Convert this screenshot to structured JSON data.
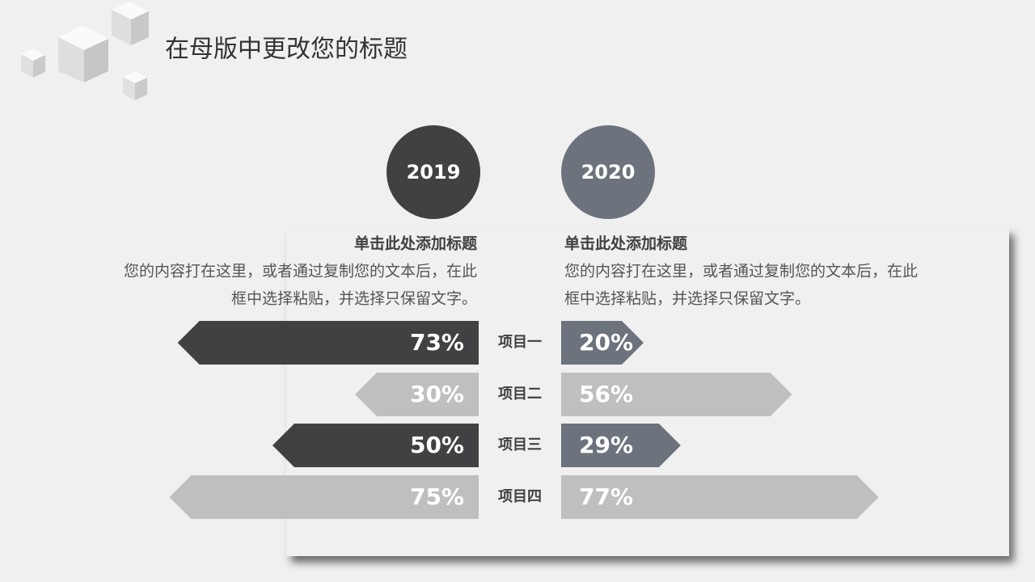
{
  "chart_data": {
    "type": "bar",
    "title": "在母版中更改您的标题",
    "categories": [
      "项目一",
      "项目二",
      "项目三",
      "项目四"
    ],
    "xlim": [
      0,
      100
    ],
    "series": [
      {
        "name": "2019",
        "color": "#414042",
        "colors": [
          "#414042",
          "#bfbfbf",
          "#414042",
          "#bfbfbf"
        ],
        "values": [
          73,
          30,
          50,
          75
        ],
        "value_labels": [
          "73%",
          "30%",
          "50%",
          "75%"
        ],
        "heading": "单击此处添加标题",
        "body": [
          "您的内容打在这里，或者通过复制您的文本后，在此",
          "框中选择粘贴，并选择只保留文字。"
        ]
      },
      {
        "name": "2020",
        "color": "#6d737d",
        "colors": [
          "#6d737d",
          "#bfbfbf",
          "#6d737d",
          "#bfbfbf"
        ],
        "values": [
          20,
          56,
          29,
          77
        ],
        "value_labels": [
          "20%",
          "56%",
          "29%",
          "77%"
        ],
        "heading": "单击此处添加标题",
        "body": [
          "您的内容打在这里，或者通过复制您的文本后，在此",
          "框中选择粘贴，并选择只保留文字。"
        ]
      }
    ]
  }
}
